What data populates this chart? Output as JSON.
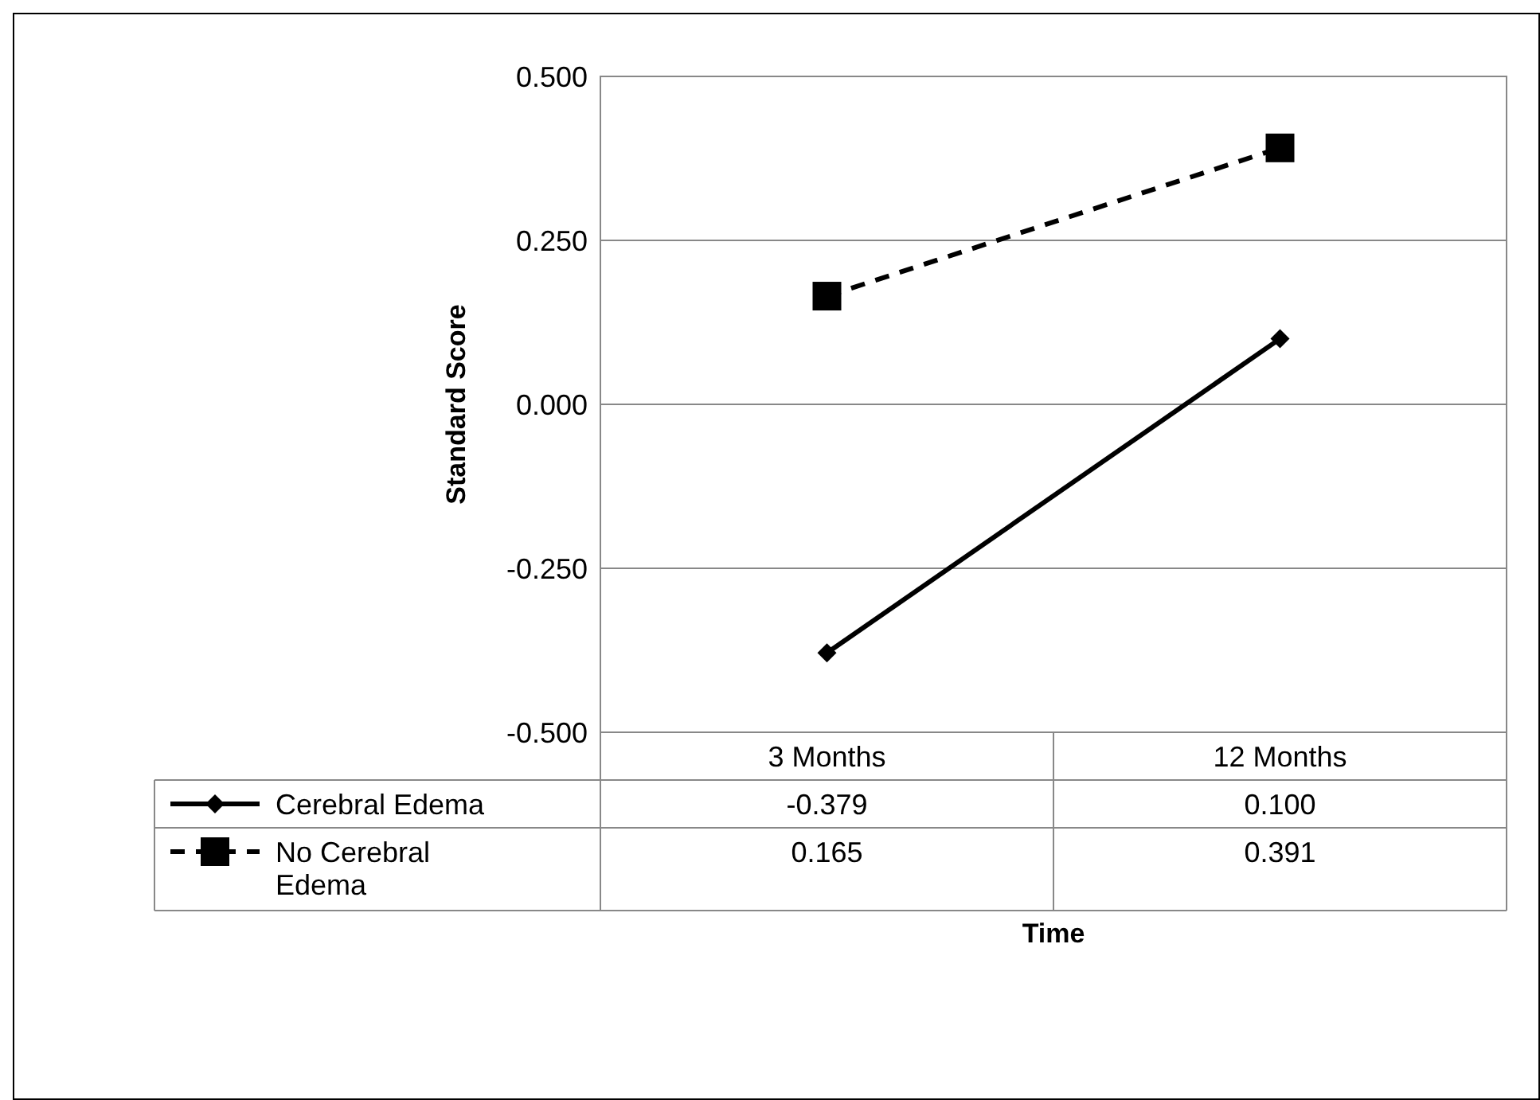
{
  "chart_data": {
    "type": "line",
    "annotations": [
      "Time"
    ],
    "ylabel": "Standard Score",
    "categories": [
      "3 Months",
      "12 Months"
    ],
    "series": [
      {
        "name": "Cerebral Edema",
        "color": "#000000",
        "marker": "diamond",
        "line_style": "solid",
        "values": [
          -0.379,
          0.1
        ],
        "value_labels": [
          "-0.379",
          "0.100"
        ]
      },
      {
        "name": "No Cerebral Edema",
        "color": "#000000",
        "marker": "square",
        "line_style": "dashed",
        "values": [
          0.165,
          0.391
        ],
        "value_labels": [
          "0.165",
          "0.391"
        ]
      }
    ],
    "ylim": [
      -0.5,
      0.5
    ],
    "yticks": [
      {
        "value": -0.5,
        "label": "-0.500"
      },
      {
        "value": -0.25,
        "label": "-0.250"
      },
      {
        "value": 0,
        "label": "0.000"
      },
      {
        "value": 0.25,
        "label": "0.250"
      },
      {
        "value": 0.5,
        "label": "0.500"
      }
    ],
    "grid": "y",
    "legend": "bottom"
  }
}
